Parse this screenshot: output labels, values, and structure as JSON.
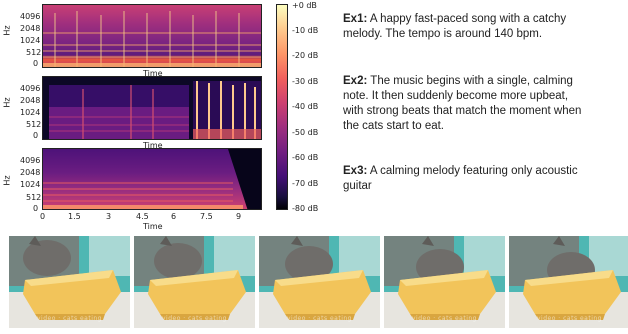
{
  "spectrograms": {
    "ylabel": "Hz",
    "xlabel": "Time",
    "yticks": [
      "4096",
      "2048",
      "1024",
      "512",
      "0"
    ],
    "xticks": [
      "0",
      "1.5",
      "3",
      "4.5",
      "6",
      "7.5",
      "9"
    ],
    "colorbar_ticks": [
      "+0 dB",
      "-10 dB",
      "-20 dB",
      "-30 dB",
      "-40 dB",
      "-50 dB",
      "-60 dB",
      "-70 dB",
      "-80 dB"
    ]
  },
  "examples": [
    {
      "tag": "Ex1:",
      "text": "A happy fast-paced song with a catchy melody. The tempo is around 140 bpm."
    },
    {
      "tag": "Ex2:",
      "text": "The music begins with a single, calming note. It then suddenly become more upbeat, with strong beats that match the moment when the cats start to eat."
    },
    {
      "tag": "Ex3:",
      "text": "A calming melody featuring only acoustic guitar"
    }
  ],
  "frames": {
    "count": 5,
    "watermark": "video · cats eating"
  },
  "colors": {
    "spec_dark": "#0c0826",
    "spec_mid": "#721f81",
    "spec_hot": "#f1605d",
    "bowl": "#f2c45a",
    "bg_teal": "#4fb7b3"
  }
}
